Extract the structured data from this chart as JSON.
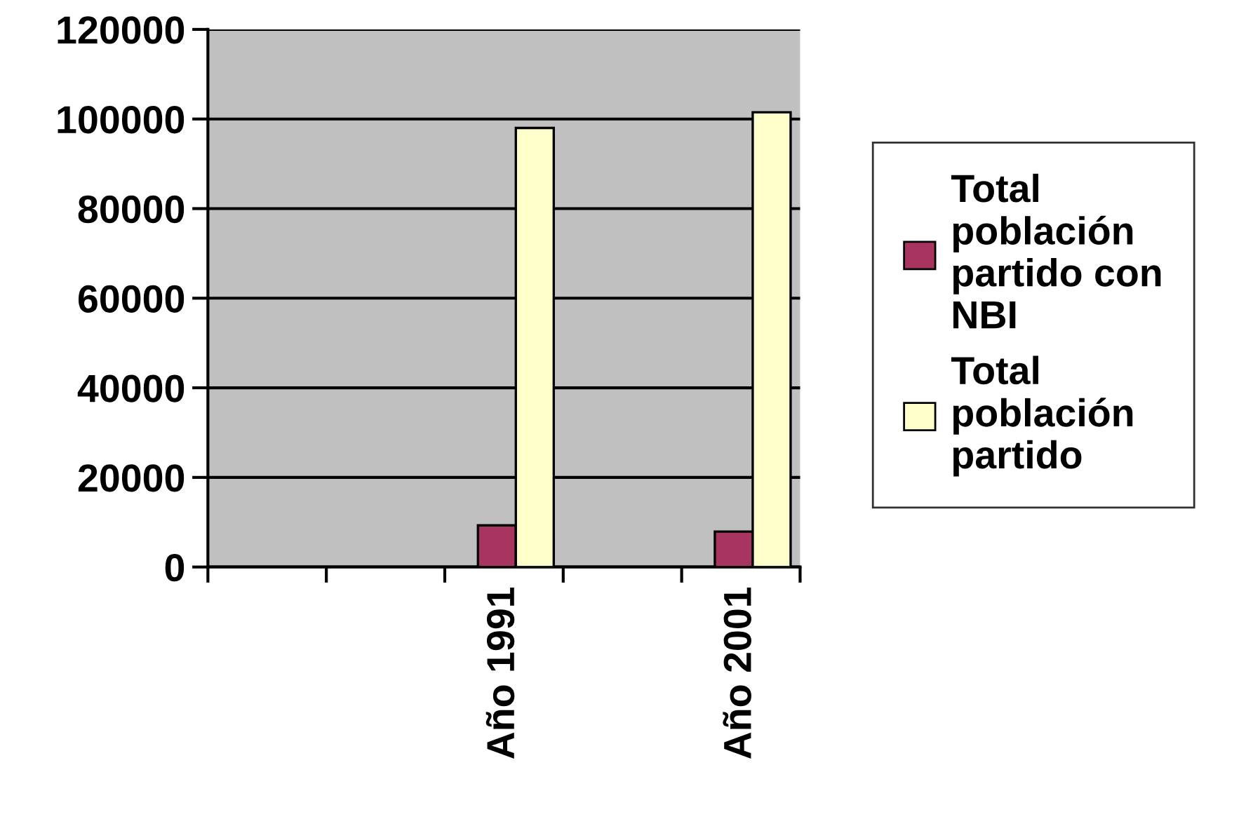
{
  "chart_data": {
    "type": "bar",
    "categories": [
      null,
      null,
      "Año 1991",
      null,
      "Año 2001"
    ],
    "series": [
      {
        "name": "Total población partido con NBI",
        "color": "#a8355f",
        "values": [
          null,
          null,
          9300,
          null,
          7900
        ]
      },
      {
        "name": "Total población partido",
        "color": "#ffffcc",
        "values": [
          null,
          null,
          98000,
          null,
          101500
        ]
      }
    ],
    "ylim": [
      0,
      120000
    ],
    "yticks": [
      0,
      20000,
      40000,
      60000,
      80000,
      100000,
      120000
    ],
    "grid": "y",
    "legend": "right"
  }
}
